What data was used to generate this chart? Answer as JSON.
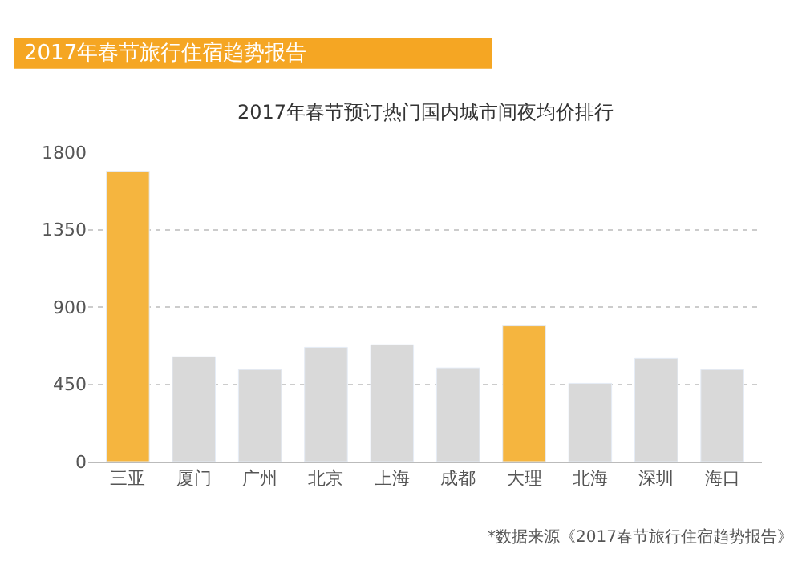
{
  "chart_data": {
    "type": "bar",
    "title": "2017年春节旅行住宿趋势报告",
    "subtitle": "2017年春节预订热门国内城市间夜均价排行",
    "categories": [
      "三亚",
      "厦门",
      "广州",
      "北京",
      "上海",
      "成都",
      "大理",
      "北海",
      "深圳",
      "海口"
    ],
    "values": [
      1690,
      610,
      535,
      665,
      680,
      545,
      790,
      455,
      600,
      535
    ],
    "colors": [
      "#f5b53f",
      "#d9d9d9",
      "#d9d9d9",
      "#d9d9d9",
      "#d9d9d9",
      "#d9d9d9",
      "#f5b53f",
      "#d9d9d9",
      "#d9d9d9",
      "#d9d9d9"
    ],
    "ylim": [
      0,
      1800
    ],
    "yticks": [
      0,
      450,
      900,
      1350,
      1800
    ],
    "grid": "y",
    "annotations": [
      "*数据来源《2017春节旅行住宿趋势报告》"
    ]
  }
}
